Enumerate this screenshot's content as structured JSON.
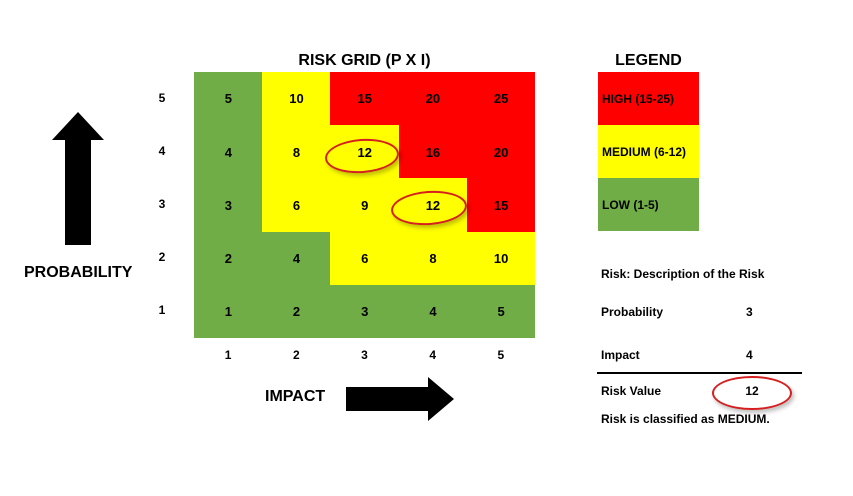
{
  "grid": {
    "title": "RISK GRID (P X I)",
    "row_labels": [
      "5",
      "4",
      "3",
      "2",
      "1"
    ],
    "col_labels": [
      "1",
      "2",
      "3",
      "4",
      "5"
    ],
    "cells": [
      [
        {
          "v": "5",
          "c": "#70ad47"
        },
        {
          "v": "10",
          "c": "#ffff00"
        },
        {
          "v": "15",
          "c": "#ff0000"
        },
        {
          "v": "20",
          "c": "#ff0000"
        },
        {
          "v": "25",
          "c": "#ff0000"
        }
      ],
      [
        {
          "v": "4",
          "c": "#70ad47"
        },
        {
          "v": "8",
          "c": "#ffff00"
        },
        {
          "v": "12",
          "c": "#ffff00"
        },
        {
          "v": "16",
          "c": "#ff0000"
        },
        {
          "v": "20",
          "c": "#ff0000"
        }
      ],
      [
        {
          "v": "3",
          "c": "#70ad47"
        },
        {
          "v": "6",
          "c": "#ffff00"
        },
        {
          "v": "9",
          "c": "#ffff00"
        },
        {
          "v": "12",
          "c": "#ffff00"
        },
        {
          "v": "15",
          "c": "#ff0000"
        }
      ],
      [
        {
          "v": "2",
          "c": "#70ad47"
        },
        {
          "v": "4",
          "c": "#70ad47"
        },
        {
          "v": "6",
          "c": "#ffff00"
        },
        {
          "v": "8",
          "c": "#ffff00"
        },
        {
          "v": "10",
          "c": "#ffff00"
        }
      ],
      [
        {
          "v": "1",
          "c": "#70ad47"
        },
        {
          "v": "2",
          "c": "#70ad47"
        },
        {
          "v": "3",
          "c": "#70ad47"
        },
        {
          "v": "4",
          "c": "#70ad47"
        },
        {
          "v": "5",
          "c": "#70ad47"
        }
      ]
    ]
  },
  "axes": {
    "probability_label": "PROBABILITY",
    "impact_label": "IMPACT"
  },
  "legend": {
    "title": "LEGEND",
    "items": [
      {
        "label": "HIGH (15-25)",
        "color": "#ff0000"
      },
      {
        "label": "MEDIUM (6-12)",
        "color": "#ffff00"
      },
      {
        "label": "LOW (1-5)",
        "color": "#70ad47"
      }
    ]
  },
  "risk": {
    "description": "Risk: Description of the Risk",
    "probability_label": "Probability",
    "probability_value": "3",
    "impact_label": "Impact",
    "impact_value": "4",
    "value_label": "Risk Value",
    "value": "12",
    "classification": "Risk is classified as MEDIUM."
  },
  "colors": {
    "high": "#ff0000",
    "medium": "#ffff00",
    "low": "#70ad47",
    "circle": "#d42020"
  }
}
